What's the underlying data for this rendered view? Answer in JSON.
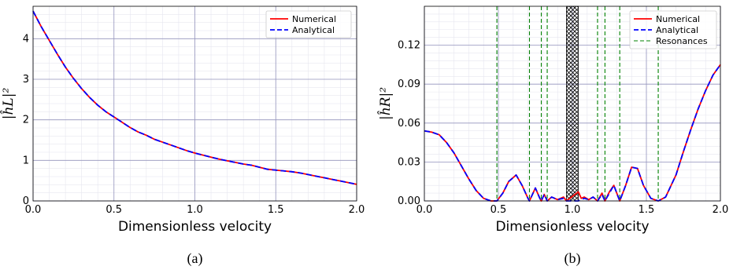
{
  "chart_data": [
    {
      "type": "line",
      "caption": "(a)",
      "xlabel": "Dimensionless velocity",
      "ylabel": "|ĥL|²",
      "xlim": [
        0,
        2
      ],
      "ylim": [
        0,
        4.8
      ],
      "xticks": [
        "0.0",
        "0.5",
        "1.0",
        "1.5",
        "2.0"
      ],
      "xtick_values": [
        0,
        0.5,
        1.0,
        1.5,
        2.0
      ],
      "yticks": [
        "0",
        "1",
        "2",
        "3",
        "4"
      ],
      "ytick_values": [
        0,
        1,
        2,
        3,
        4
      ],
      "grid": true,
      "legend_position": "top-right",
      "series": [
        {
          "name": "Numerical",
          "color": "#ff0000",
          "style": "solid",
          "x": [
            0,
            0.05,
            0.1,
            0.15,
            0.2,
            0.25,
            0.3,
            0.35,
            0.4,
            0.45,
            0.5,
            0.55,
            0.6,
            0.65,
            0.7,
            0.75,
            0.8,
            0.85,
            0.9,
            0.95,
            1.0,
            1.05,
            1.1,
            1.15,
            1.2,
            1.25,
            1.3,
            1.35,
            1.4,
            1.45,
            1.5,
            1.55,
            1.6,
            1.65,
            1.7,
            1.75,
            1.8,
            1.85,
            1.9,
            1.95,
            2.0
          ],
          "y": [
            4.68,
            4.3,
            3.96,
            3.62,
            3.3,
            3.02,
            2.77,
            2.55,
            2.36,
            2.2,
            2.07,
            1.94,
            1.81,
            1.7,
            1.62,
            1.52,
            1.45,
            1.38,
            1.31,
            1.24,
            1.18,
            1.13,
            1.08,
            1.03,
            0.99,
            0.95,
            0.91,
            0.88,
            0.83,
            0.78,
            0.76,
            0.74,
            0.72,
            0.69,
            0.65,
            0.61,
            0.57,
            0.53,
            0.49,
            0.45,
            0.41
          ]
        },
        {
          "name": "Analytical",
          "color": "#0000ff",
          "style": "dashed",
          "x": [
            0,
            0.05,
            0.1,
            0.15,
            0.2,
            0.25,
            0.3,
            0.35,
            0.4,
            0.45,
            0.5,
            0.55,
            0.6,
            0.65,
            0.7,
            0.75,
            0.8,
            0.85,
            0.9,
            0.95,
            1.0,
            1.05,
            1.1,
            1.15,
            1.2,
            1.25,
            1.3,
            1.35,
            1.4,
            1.45,
            1.5,
            1.55,
            1.6,
            1.65,
            1.7,
            1.75,
            1.8,
            1.85,
            1.9,
            1.95,
            2.0
          ],
          "y": [
            4.68,
            4.3,
            3.96,
            3.62,
            3.3,
            3.02,
            2.77,
            2.55,
            2.36,
            2.2,
            2.07,
            1.94,
            1.81,
            1.7,
            1.62,
            1.52,
            1.45,
            1.38,
            1.31,
            1.24,
            1.18,
            1.13,
            1.08,
            1.03,
            0.99,
            0.95,
            0.91,
            0.88,
            0.83,
            0.78,
            0.76,
            0.74,
            0.72,
            0.69,
            0.65,
            0.61,
            0.57,
            0.53,
            0.49,
            0.45,
            0.41
          ]
        }
      ]
    },
    {
      "type": "line",
      "caption": "(b)",
      "xlabel": "Dimensionless velocity",
      "ylabel": "|ĥR|²",
      "xlim": [
        0,
        2
      ],
      "ylim": [
        0,
        0.15
      ],
      "xticks": [
        "0.0",
        "0.5",
        "1.0",
        "1.5",
        "2.0"
      ],
      "xtick_values": [
        0,
        0.5,
        1.0,
        1.5,
        2.0
      ],
      "yticks": [
        "0.00",
        "0.03",
        "0.06",
        "0.09",
        "0.12"
      ],
      "ytick_values": [
        0,
        0.03,
        0.06,
        0.09,
        0.12
      ],
      "grid": true,
      "legend_position": "top-right",
      "hatched_region": [
        0.96,
        1.04
      ],
      "resonances": {
        "name": "Resonances",
        "color": "#008000",
        "x": [
          0.49,
          0.71,
          0.79,
          0.83,
          1.17,
          1.22,
          1.32,
          1.58
        ]
      },
      "series": [
        {
          "name": "Numerical",
          "color": "#ff0000",
          "style": "solid",
          "x": [
            0,
            0.05,
            0.1,
            0.15,
            0.2,
            0.25,
            0.3,
            0.35,
            0.4,
            0.45,
            0.49,
            0.53,
            0.57,
            0.62,
            0.66,
            0.7,
            0.71,
            0.75,
            0.78,
            0.79,
            0.81,
            0.83,
            0.86,
            0.9,
            0.94,
            0.96,
            1.04,
            1.06,
            1.08,
            1.11,
            1.14,
            1.17,
            1.2,
            1.22,
            1.25,
            1.28,
            1.32,
            1.36,
            1.4,
            1.44,
            1.48,
            1.53,
            1.58,
            1.63,
            1.7,
            1.75,
            1.8,
            1.85,
            1.9,
            1.95,
            2.0
          ],
          "y": [
            0.054,
            0.053,
            0.051,
            0.045,
            0.037,
            0.027,
            0.017,
            0.008,
            0.002,
            0.0,
            0.0,
            0.006,
            0.015,
            0.02,
            0.012,
            0.002,
            0.0,
            0.01,
            0.002,
            0.0,
            0.005,
            0.0,
            0.003,
            0.001,
            0.003,
            0.0,
            0.007,
            0.002,
            0.003,
            0.001,
            0.003,
            0.0,
            0.006,
            0.0,
            0.007,
            0.012,
            0.0,
            0.012,
            0.026,
            0.025,
            0.012,
            0.002,
            0.0,
            0.003,
            0.02,
            0.038,
            0.055,
            0.071,
            0.085,
            0.097,
            0.105
          ]
        },
        {
          "name": "Analytical",
          "color": "#0000ff",
          "style": "dashed",
          "x": [
            0,
            0.05,
            0.1,
            0.15,
            0.2,
            0.25,
            0.3,
            0.35,
            0.4,
            0.45,
            0.49,
            0.53,
            0.57,
            0.62,
            0.66,
            0.7,
            0.71,
            0.75,
            0.78,
            0.79,
            0.81,
            0.83,
            0.86,
            0.9,
            0.94,
            0.96,
            1.04,
            1.06,
            1.08,
            1.11,
            1.14,
            1.17,
            1.2,
            1.22,
            1.25,
            1.28,
            1.32,
            1.36,
            1.4,
            1.44,
            1.48,
            1.53,
            1.58,
            1.63,
            1.7,
            1.75,
            1.8,
            1.85,
            1.9,
            1.95,
            2.0
          ],
          "y": [
            0.054,
            0.053,
            0.051,
            0.045,
            0.037,
            0.027,
            0.017,
            0.008,
            0.002,
            0.0,
            0.0,
            0.006,
            0.015,
            0.02,
            0.012,
            0.002,
            0.0,
            0.01,
            0.002,
            0.0,
            0.005,
            0.0,
            0.003,
            0.001,
            0.002,
            0.0,
            0.0,
            0.001,
            0.002,
            0.001,
            0.003,
            0.0,
            0.005,
            0.0,
            0.006,
            0.012,
            0.0,
            0.012,
            0.026,
            0.025,
            0.012,
            0.002,
            0.0,
            0.003,
            0.02,
            0.038,
            0.055,
            0.071,
            0.085,
            0.097,
            0.105
          ]
        }
      ]
    }
  ]
}
